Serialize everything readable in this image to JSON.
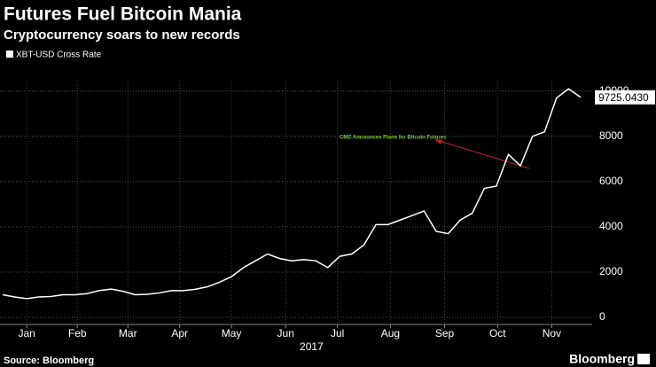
{
  "chart_data": {
    "type": "line",
    "title": "Futures Fuel Bitcoin Mania",
    "subtitle": "Cryptocurrency soars to new records",
    "source": "Source: Bloomberg",
    "brand": "Bloomberg",
    "annotation": "CME Announces Plans for Bitcoin Futures",
    "series": [
      {
        "name": "XBT-USD Cross Rate",
        "color": "#ffffff",
        "values": [
          1000,
          900,
          830,
          900,
          920,
          1000,
          1000,
          1050,
          1180,
          1250,
          1150,
          1000,
          1020,
          1080,
          1180,
          1180,
          1240,
          1350,
          1550,
          1800,
          2200,
          2500,
          2800,
          2600,
          2500,
          2550,
          2500,
          2200,
          2700,
          2800,
          3200,
          4100,
          4100,
          4300,
          4500,
          4700,
          3800,
          3700,
          4300,
          4600,
          5700,
          5800,
          7200,
          6700,
          8000,
          8200,
          9700,
          10100,
          9725.043
        ]
      }
    ],
    "last_label": {
      "value": 9725.043,
      "label": "9725.0430"
    },
    "xlim": [
      0,
      48
    ],
    "xticks": [
      {
        "value": 2,
        "label": "Jan"
      },
      {
        "value": 6.2,
        "label": "Feb"
      },
      {
        "value": 10.4,
        "label": "Mar"
      },
      {
        "value": 14.7,
        "label": "Apr"
      },
      {
        "value": 19,
        "label": "May"
      },
      {
        "value": 23.5,
        "label": "Jun"
      },
      {
        "value": 27.8,
        "label": "Jul"
      },
      {
        "value": 32.2,
        "label": "Aug"
      },
      {
        "value": 36.7,
        "label": "Sep"
      },
      {
        "value": 41.1,
        "label": "Oct"
      },
      {
        "value": 45.6,
        "label": "Nov"
      }
    ],
    "year_label": "2017",
    "ylim": [
      0,
      10500
    ],
    "yticks": [
      0,
      2000,
      4000,
      6000,
      8000,
      10000
    ],
    "grid": true
  }
}
